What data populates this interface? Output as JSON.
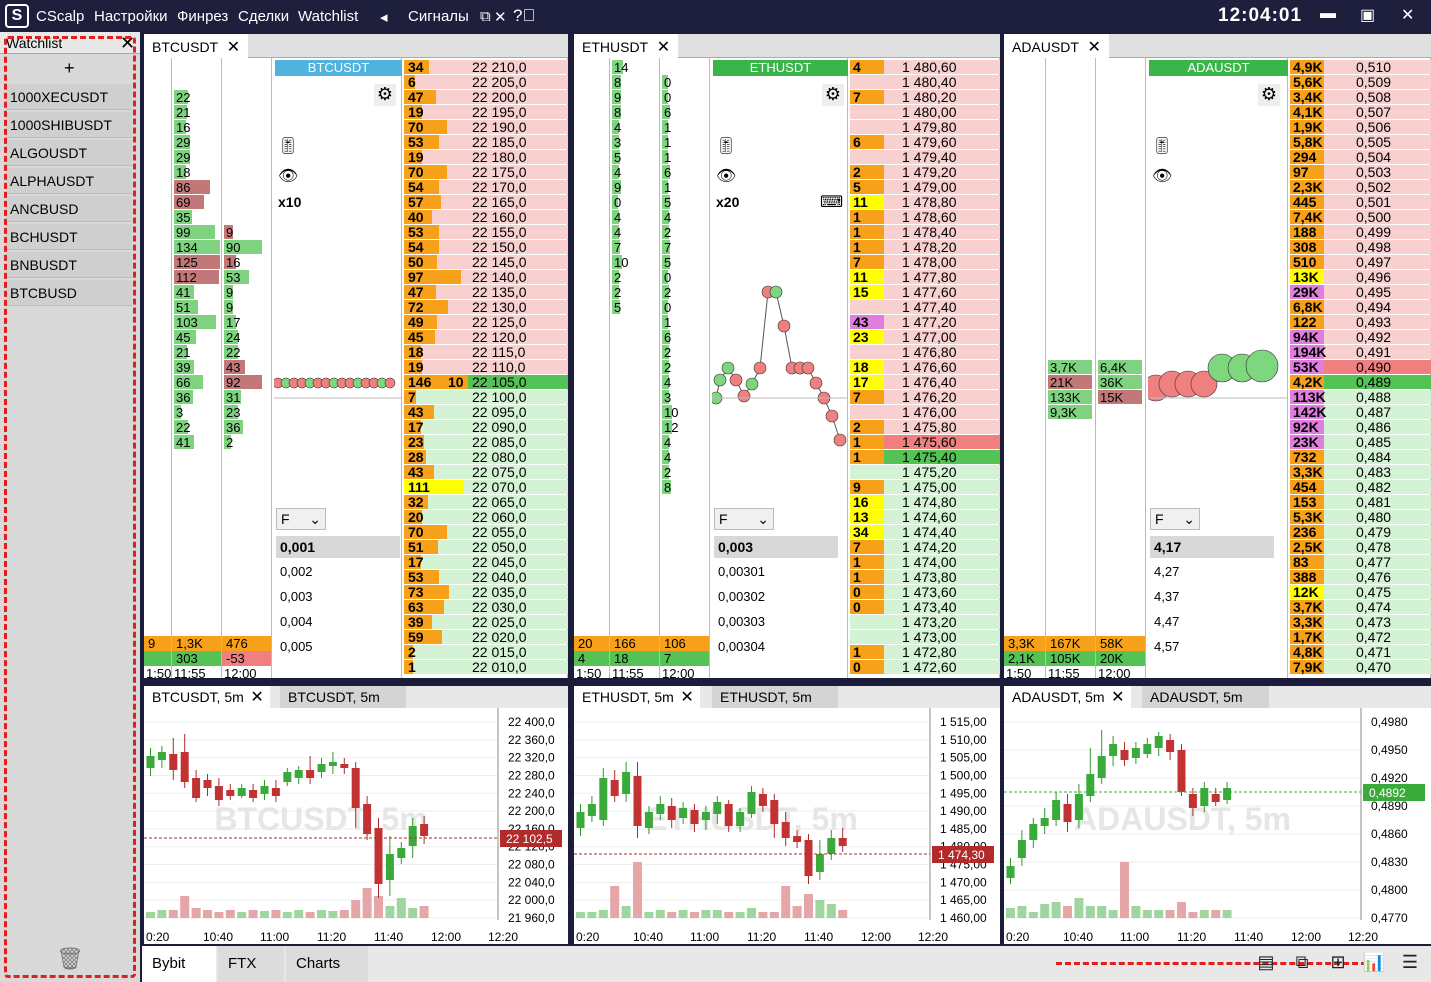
{
  "topbar": {
    "app_name": "CScalp",
    "menu": [
      "Настройки",
      "Финрез",
      "Сделки",
      "Watchlist"
    ],
    "signals": "Сигналы",
    "clock": "12:04:01"
  },
  "watchlist": {
    "title": "Watchlist",
    "add": "+",
    "items": [
      "1000XECUSDT",
      "1000SHIBUSDT",
      "ALGOUSDT",
      "ALPHAUSDT",
      "ANCBUSD",
      "BCHUSDT",
      "BNBUSDT",
      "BTCBUSD"
    ]
  },
  "panels": [
    {
      "tab": "BTCUSDT",
      "ticker_header": "BTCUSDT",
      "ticker_color": "#4fb3dd",
      "leverage": "x10",
      "mode": "F",
      "step_selected": "0,001",
      "steps": [
        "0,002",
        "0,003",
        "0,004",
        "0,005"
      ],
      "col1": [
        "22",
        "21",
        "16",
        "29",
        "29",
        "18",
        "86",
        "69",
        "35",
        "99",
        "134",
        "125",
        "112",
        "41",
        "51",
        "103",
        "45",
        "21",
        "39",
        "66",
        "36",
        "3",
        "22",
        "41"
      ],
      "col2": [
        "9",
        "90",
        "16",
        "53",
        "9",
        "9",
        "17",
        "24",
        "22",
        "43",
        "92",
        "31",
        "23",
        "36",
        "2"
      ],
      "bottom": [
        [
          "9",
          "1,3K",
          "476"
        ],
        [
          "",
          "303",
          "-53"
        ]
      ],
      "times": [
        "1:50",
        "11:55",
        "12:00"
      ],
      "ask_prices": [
        "22 210,0",
        "22 205,0",
        "22 200,0",
        "22 195,0",
        "22 190,0",
        "22 185,0",
        "22 180,0",
        "22 175,0",
        "22 170,0",
        "22 165,0",
        "22 160,0",
        "22 155,0",
        "22 150,0",
        "22 145,0",
        "22 140,0",
        "22 135,0",
        "22 130,0",
        "22 125,0",
        "22 120,0",
        "22 115,0",
        "22 110,0"
      ],
      "ask_vols": [
        "34",
        "6",
        "47",
        "19",
        "70",
        "53",
        "19",
        "70",
        "54",
        "57",
        "40",
        "53",
        "54",
        "50",
        "97",
        "47",
        "72",
        "49",
        "45",
        "18",
        "19"
      ],
      "spread_row": [
        "146",
        "10",
        "22 105,0"
      ],
      "bid_prices": [
        "22 100,0",
        "22 095,0",
        "22 090,0",
        "22 085,0",
        "22 080,0",
        "22 075,0",
        "22 070,0",
        "22 065,0",
        "22 060,0",
        "22 055,0",
        "22 050,0",
        "22 045,0",
        "22 040,0",
        "22 035,0",
        "22 030,0",
        "22 025,0",
        "22 020,0",
        "22 015,0",
        "22 010,0"
      ],
      "bid_vols": [
        "7",
        "43",
        "17",
        "23",
        "28",
        "43",
        "111",
        "32",
        "20",
        "70",
        "51",
        "17",
        "53",
        "73",
        "63",
        "39",
        "59",
        "2",
        "1"
      ]
    },
    {
      "tab": "ETHUSDT",
      "ticker_header": "ETHUSDT",
      "ticker_color": "#3ab54a",
      "leverage": "x20",
      "mode": "F",
      "step_selected": "0,003",
      "steps": [
        "0,00301",
        "0,00302",
        "0,00303",
        "0,00304"
      ],
      "col1": [
        "14",
        "8",
        "9",
        "8",
        "4",
        "3",
        "5",
        "4",
        "9",
        "0",
        "4",
        "4",
        "7",
        "10",
        "2",
        "2",
        "5"
      ],
      "col2": [
        "0",
        "0",
        "6",
        "1",
        "1",
        "1",
        "6",
        "1",
        "5",
        "4",
        "2",
        "7",
        "5",
        "0",
        "2",
        "0",
        "1",
        "6",
        "2",
        "2",
        "4",
        "3",
        "10",
        "12",
        "4",
        "4",
        "2",
        "8"
      ],
      "bottom": [
        [
          "20",
          "166",
          "106"
        ],
        [
          "4",
          "18",
          "7"
        ]
      ],
      "times": [
        "1:50",
        "11:55",
        "12:00"
      ],
      "book_prices": [
        "1 480,60",
        "1 480,40",
        "1 480,20",
        "1 480,00",
        "1 479,80",
        "1 479,60",
        "1 479,40",
        "1 479,20",
        "1 479,00",
        "1 478,80",
        "1 478,60",
        "1 478,40",
        "1 478,20",
        "1 478,00",
        "1 477,80",
        "1 477,60",
        "1 477,40",
        "1 477,20",
        "1 477,00",
        "1 476,80",
        "1 476,60",
        "1 476,40",
        "1 476,20",
        "1 476,00",
        "1 475,80",
        "1 475,60",
        "1 475,40",
        "1 475,20",
        "1 475,00",
        "1 474,80",
        "1 474,60",
        "1 474,40",
        "1 474,20",
        "1 474,00",
        "1 473,80",
        "1 473,60",
        "1 473,40",
        "1 473,20",
        "1 473,00",
        "1 472,80",
        "1 472,60"
      ],
      "book_vols": [
        "4",
        "",
        "7",
        "",
        "",
        "6",
        "",
        "2",
        "5",
        "11",
        "1",
        "1",
        "1",
        "7",
        "11",
        "15",
        "",
        "43",
        "23",
        "",
        "18",
        "17",
        "7",
        "",
        "2",
        "1",
        "1",
        "",
        "9",
        "16",
        "13",
        "34",
        "7",
        "1",
        "1",
        "0",
        "0",
        "",
        "",
        "1",
        "0"
      ]
    },
    {
      "tab": "ADAUSDT",
      "ticker_header": "ADAUSDT",
      "ticker_color": "#3ab54a",
      "mode": "F",
      "step_selected": "4,17",
      "steps": [
        "4,27",
        "4,37",
        "4,47",
        "4,57"
      ],
      "clusters": [
        [
          "3,7K",
          "6,4K"
        ],
        [
          "21K",
          "36K"
        ],
        [
          "133K",
          "15K"
        ],
        [
          "9,3K",
          ""
        ]
      ],
      "bottom": [
        [
          "3,3K",
          "167K",
          "58K"
        ],
        [
          "2,1K",
          "105K",
          "20K"
        ]
      ],
      "times": [
        "1:50",
        "11:55",
        "12:00"
      ],
      "book_prices": [
        "0,510",
        "0,509",
        "0,508",
        "0,507",
        "0,506",
        "0,505",
        "0,504",
        "0,503",
        "0,502",
        "0,501",
        "0,500",
        "0,499",
        "0,498",
        "0,497",
        "0,496",
        "0,495",
        "0,494",
        "0,493",
        "0,492",
        "0,491",
        "0,490",
        "0,489",
        "0,488",
        "0,487",
        "0,486",
        "0,485",
        "0,484",
        "0,483",
        "0,482",
        "0,481",
        "0,480",
        "0,479",
        "0,478",
        "0,477",
        "0,476",
        "0,475",
        "0,474",
        "0,473",
        "0,472",
        "0,471",
        "0,470"
      ],
      "book_vols": [
        "4,9K",
        "5,6K",
        "3,4K",
        "4,1K",
        "1,9K",
        "5,8K",
        "294",
        "97",
        "2,3K",
        "445",
        "7,4K",
        "188",
        "308",
        "510",
        "13K",
        "29K",
        "6,8K",
        "122",
        "94K",
        "194K",
        "53K",
        "4,2K",
        "113K",
        "142K",
        "92K",
        "23K",
        "732",
        "3,3K",
        "454",
        "153",
        "5,3K",
        "236",
        "2,5K",
        "83",
        "388",
        "12K",
        "3,7K",
        "3,3K",
        "1,7K",
        "4,8K",
        "7,9K"
      ]
    }
  ],
  "charts": [
    {
      "tab_active": "BTCUSDT, 5m",
      "tab_other": "BTCUSDT, 5m",
      "watermark": "BTCUSDT, 5m",
      "price_label": "22 102,5",
      "y_ticks": [
        "22 400,0",
        "22 360,0",
        "22 320,0",
        "22 280,0",
        "22 240,0",
        "22 200,0",
        "22 160,0",
        "22 120,0",
        "22 080,0",
        "22 040,0",
        "22 000,0",
        "21 960,0"
      ],
      "x_ticks": [
        "0:20",
        "10:40",
        "11:00",
        "11:20",
        "11:40",
        "12:00",
        "12:20"
      ]
    },
    {
      "tab_active": "ETHUSDT, 5m",
      "tab_other": "ETHUSDT, 5m",
      "watermark": "ETHUSDT, 5m",
      "price_label": "1 474,30",
      "y_ticks": [
        "1 515,00",
        "1 510,00",
        "1 505,00",
        "1 500,00",
        "1 495,00",
        "1 490,00",
        "1 485,00",
        "1 480,00",
        "1 475,00",
        "1 470,00",
        "1 465,00",
        "1 460,00"
      ],
      "x_ticks": [
        "0:20",
        "10:40",
        "11:00",
        "11:20",
        "11:40",
        "12:00",
        "12:20"
      ]
    },
    {
      "tab_active": "ADAUSDT, 5m",
      "tab_other": "ADAUSDT, 5m",
      "watermark": "ADAUSDT, 5m",
      "price_label": "0,4892",
      "y_ticks": [
        "0,4980",
        "0,4950",
        "0,4920",
        "0,4890",
        "0,4860",
        "0,4830",
        "0,4800",
        "0,4770"
      ],
      "x_ticks": [
        "0:20",
        "10:40",
        "11:00",
        "11:20",
        "11:40",
        "12:00",
        "12:20"
      ]
    }
  ],
  "bottom_tabs": [
    "Bybit",
    "FTX",
    "Charts"
  ],
  "colors": {
    "ask": "#f7a11a",
    "ask_bg": "#f8d0d0",
    "bid_bg": "#d4f3d4",
    "green": "#54c254",
    "red": "#d9534f",
    "yellow": "#ffff00",
    "magenta": "#e07ee0"
  }
}
